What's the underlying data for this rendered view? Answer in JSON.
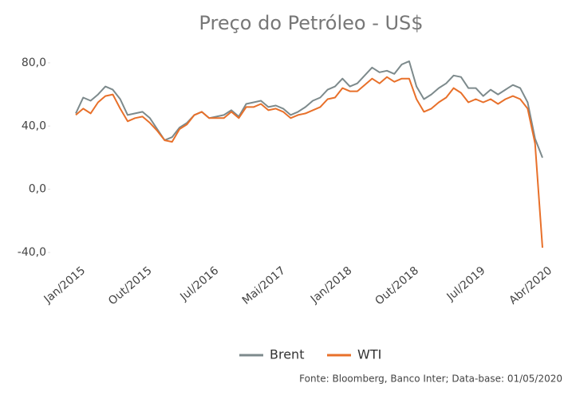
{
  "chart_data": {
    "type": "line",
    "title": "Preço do Petróleo - US$",
    "source": "Fonte: Bloomberg, Banco Inter; Data-base: 01/05/2020",
    "categories": [
      "Jan/2015",
      null,
      null,
      null,
      null,
      null,
      null,
      null,
      null,
      "Out/2015",
      null,
      null,
      null,
      null,
      null,
      null,
      null,
      null,
      "Jul/2016",
      null,
      null,
      null,
      null,
      null,
      null,
      null,
      null,
      "Mai/2017",
      null,
      null,
      null,
      null,
      null,
      null,
      null,
      null,
      "Jan/2018",
      null,
      null,
      null,
      null,
      null,
      null,
      null,
      null,
      "Out/2018",
      null,
      null,
      null,
      null,
      null,
      null,
      null,
      null,
      "Jul/2019",
      null,
      null,
      null,
      null,
      null,
      null,
      null,
      null,
      "Abr/2020"
    ],
    "series": [
      {
        "name": "Brent",
        "color": "#7d8a8c",
        "values": [
          48,
          58,
          56,
          60,
          65,
          63,
          57,
          47,
          48,
          49,
          45,
          38,
          31,
          33,
          39,
          42,
          47,
          49,
          45,
          46,
          47,
          50,
          46,
          54,
          55,
          56,
          52,
          53,
          51,
          47,
          49,
          52,
          56,
          58,
          63,
          65,
          70,
          65,
          67,
          72,
          77,
          74,
          75,
          73,
          79,
          81,
          65,
          57,
          60,
          64,
          67,
          72,
          71,
          64,
          64,
          59,
          63,
          60,
          63,
          66,
          64,
          55,
          32,
          20
        ]
      },
      {
        "name": "WTI",
        "color": "#e8702a",
        "values": [
          47,
          51,
          48,
          55,
          59,
          60,
          51,
          43,
          45,
          46,
          42,
          37,
          31,
          30,
          38,
          41,
          47,
          49,
          45,
          45,
          45,
          49,
          45,
          52,
          52,
          54,
          50,
          51,
          49,
          45,
          47,
          48,
          50,
          52,
          57,
          58,
          64,
          62,
          62,
          66,
          70,
          67,
          71,
          68,
          70,
          70,
          57,
          49,
          51,
          55,
          58,
          64,
          61,
          55,
          57,
          55,
          57,
          54,
          57,
          59,
          57,
          51,
          29,
          -37
        ]
      }
    ],
    "ylim": [
      -42,
      88
    ],
    "yticks": [
      {
        "value": 80,
        "label": "80,0"
      },
      {
        "value": 40,
        "label": "40,0"
      },
      {
        "value": 0,
        "label": "0,0"
      },
      {
        "value": -40,
        "label": "-40,0"
      }
    ],
    "legend": "bottom"
  }
}
